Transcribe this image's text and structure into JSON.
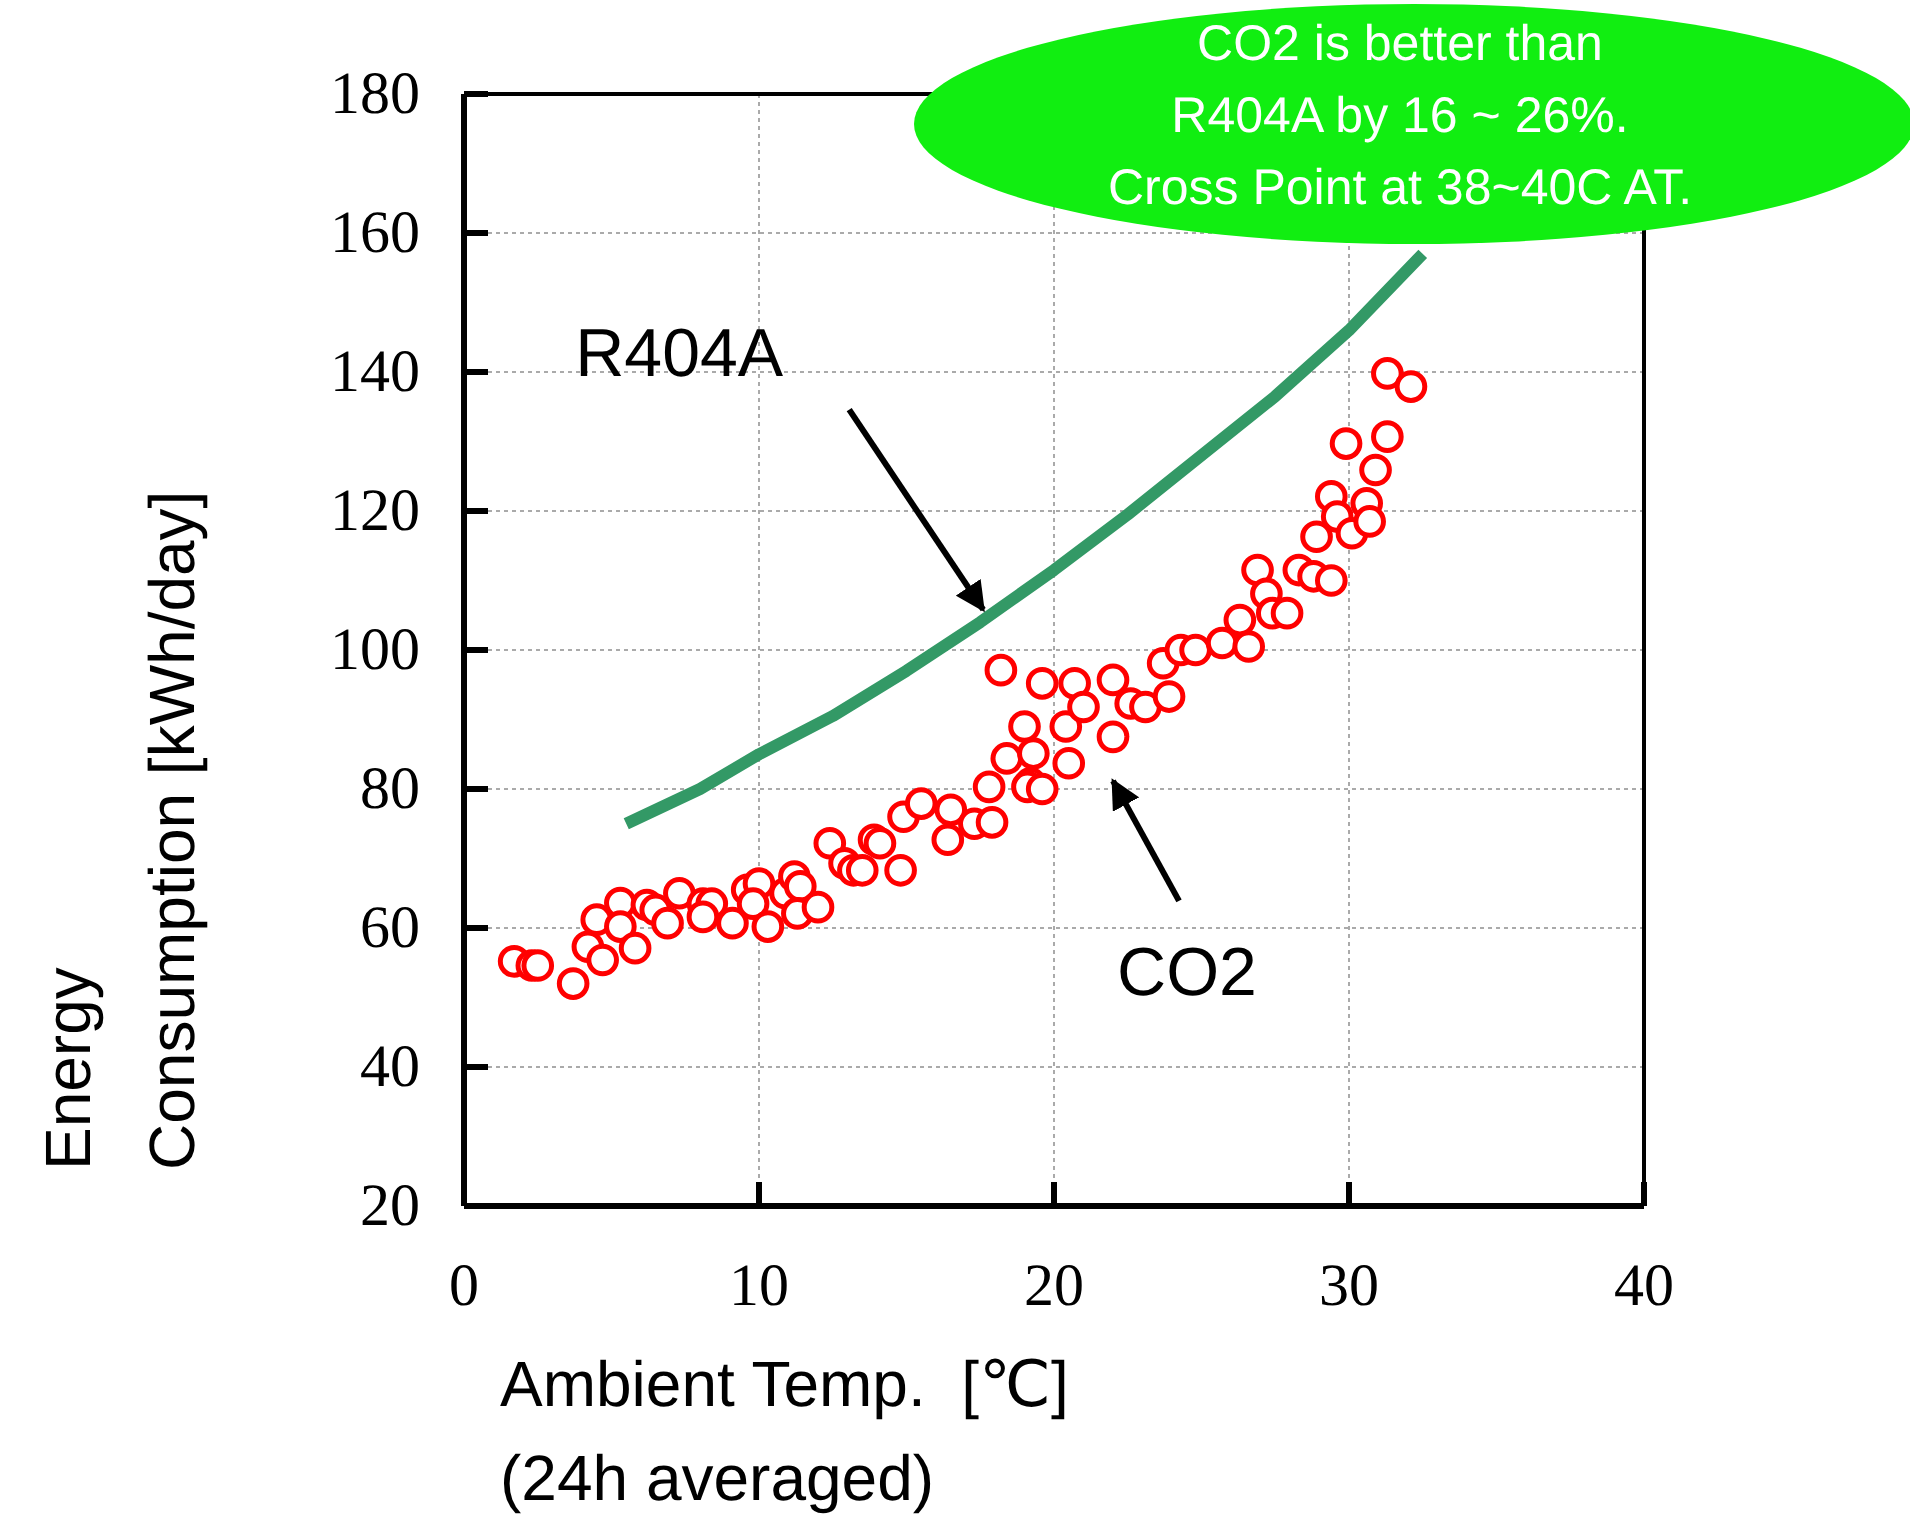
{
  "chart_data": {
    "type": "scatter",
    "xlabel": "Ambient Temp.  [℃]\n(24h averaged)",
    "ylabel": "Energy\nConsumption [kWh/day]",
    "xlim": [
      0,
      40
    ],
    "xticks": [
      0,
      10,
      20,
      30,
      40
    ],
    "ylim": [
      20,
      180
    ],
    "yticks": [
      20,
      40,
      60,
      80,
      100,
      120,
      140,
      160,
      180
    ],
    "grid": true,
    "series": [
      {
        "type": "line",
        "color": "#339966",
        "line_style": "solid",
        "x": [
          5.5,
          8,
          10,
          12.5,
          15,
          17.5,
          20,
          22.5,
          25,
          27.5,
          30,
          32.5
        ],
        "values": [
          75,
          80,
          85,
          90.5,
          97,
          104,
          111.5,
          119.5,
          128,
          136.5,
          146,
          157
        ]
      },
      {
        "color": "#ff0000",
        "marker": "circle",
        "x": [
          1.7,
          2.3,
          2.5,
          3.7,
          4.2,
          4.7,
          4.5,
          5.3,
          5.3,
          5.8,
          6.2,
          6.5,
          6.9,
          7.3,
          8.1,
          8.4,
          8.1,
          9.1,
          9.6,
          10.0,
          9.8,
          10.3,
          10.9,
          11.2,
          11.4,
          11.3,
          12.0,
          12.4,
          12.9,
          13.2,
          13.5,
          13.9,
          14.1,
          14.8,
          14.9,
          15.5,
          16.4,
          16.5,
          17.3,
          17.9,
          17.8,
          18.2,
          18.4,
          19.0,
          19.2,
          19.3,
          19.6,
          19.1,
          19.6,
          20.4,
          20.7,
          20.5,
          21.0,
          22.0,
          22.0,
          22.6,
          23.1,
          23.9,
          23.7,
          24.3,
          24.8,
          25.7,
          26.3,
          26.6,
          26.9,
          27.2,
          27.4,
          27.9,
          28.3,
          28.8,
          29.4,
          28.9,
          29.4,
          29.6,
          30.1,
          30.6,
          30.7,
          29.9,
          30.9,
          31.3,
          31.3,
          32.1
        ],
        "values": [
          55.2,
          54.6,
          54.6,
          52.0,
          57.3,
          55.4,
          61.2,
          63.6,
          60.2,
          57.1,
          63.3,
          62.6,
          60.7,
          65.0,
          63.5,
          63.5,
          61.6,
          60.7,
          65.5,
          66.4,
          63.5,
          60.2,
          65.0,
          67.4,
          66.0,
          62.1,
          63.0,
          72.2,
          69.3,
          68.3,
          68.3,
          72.7,
          72.2,
          68.3,
          76.0,
          77.9,
          72.7,
          77.0,
          75.0,
          75.2,
          80.3,
          97.1,
          84.4,
          89.0,
          80.8,
          85.1,
          95.2,
          80.3,
          80.0,
          89.0,
          95.2,
          83.7,
          91.8,
          95.7,
          87.5,
          92.3,
          91.8,
          93.3,
          98.1,
          100.0,
          100.0,
          101.0,
          104.3,
          100.5,
          111.5,
          108.1,
          105.3,
          105.3,
          111.5,
          110.6,
          110.0,
          116.3,
          122.1,
          119.2,
          116.8,
          121.1,
          118.5,
          129.7,
          125.9,
          130.7,
          139.8,
          137.9
        ]
      }
    ],
    "annotations": [
      "CO2 is better than\nR404A by 16 ~ 26%.\nCross Point at 38~40C AT.",
      {
        "text": "R404A",
        "x": 17.6,
        "y": 105.8
      },
      {
        "text": "CO2",
        "x": 22.0,
        "y": 87.5
      }
    ]
  }
}
